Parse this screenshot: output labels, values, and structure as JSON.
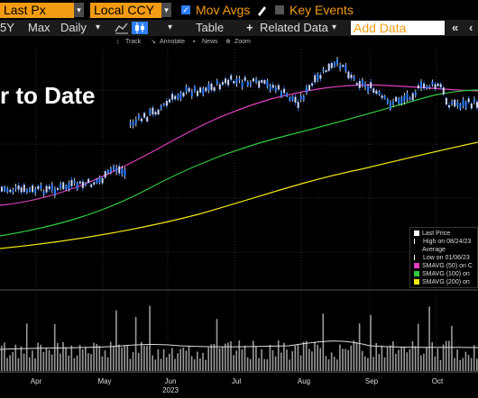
{
  "toolbar": {
    "price_field": "Last Px",
    "currency_field": "Local CCY",
    "mov_avgs_label": "Mov Avgs",
    "key_events_label": "Key Events",
    "period_5y": "5Y",
    "period_max": "Max",
    "frequency": "Daily",
    "table_label": "Table",
    "related_data_label": "Related Data",
    "add_data_placeholder": "Add Data",
    "track_label": "Track",
    "annotate_label": "Annotate",
    "news_label": "News",
    "zoom_label": "Zoom"
  },
  "chart": {
    "heading": "r to Date",
    "legend": {
      "last_price": "Last Price",
      "high": "High on 08/24/23",
      "average": "Average",
      "low": "Low on 01/06/23",
      "sma50": "SMAVG (50)  on C",
      "sma100": "SMAVG (100)  on",
      "sma200": "SMAVG (200)  on"
    },
    "x_axis": {
      "months": [
        "Apr",
        "May",
        "Jun",
        "Jul",
        "Aug",
        "Sep",
        "Oct"
      ],
      "year": "2023"
    }
  },
  "colors": {
    "accent": "#f39c12",
    "candle": "#2d7fff",
    "sma50": "#e040c0",
    "sma100": "#2ecc40",
    "sma200": "#f1e60f",
    "volume": "#9a9a9a"
  }
}
